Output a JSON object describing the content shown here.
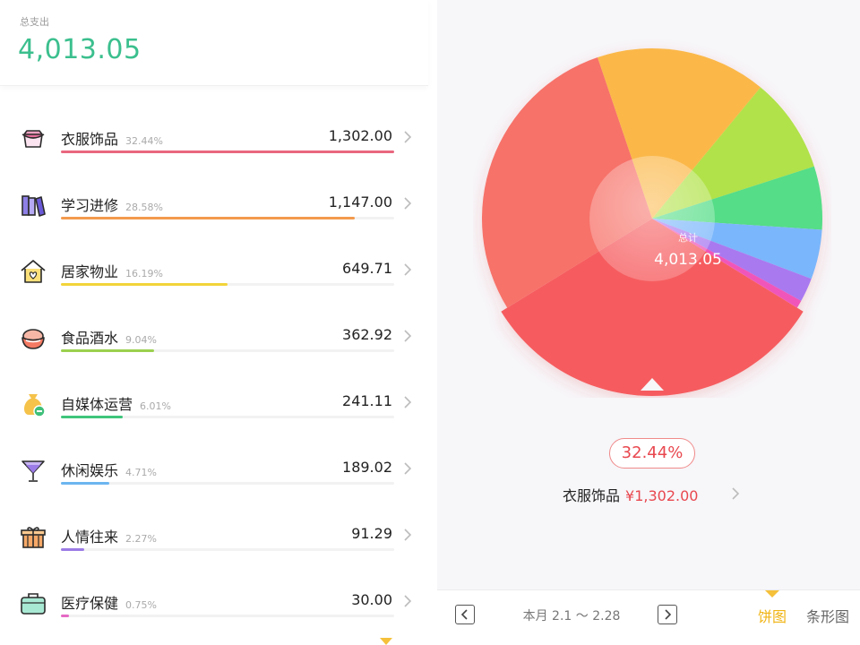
{
  "summary": {
    "label": "总支出",
    "total": "4,013.05"
  },
  "categories": [
    {
      "name": "衣服饰品",
      "percent": "32.44%",
      "amount": "1,302.00",
      "share": 0.3244,
      "icon": "clothes-basket-icon",
      "color": "#e8677e"
    },
    {
      "name": "学习进修",
      "percent": "28.58%",
      "amount": "1,147.00",
      "share": 0.2858,
      "icon": "books-icon",
      "color": "#f39a4d"
    },
    {
      "name": "居家物业",
      "percent": "16.19%",
      "amount": "649.71",
      "share": 0.1619,
      "icon": "house-icon",
      "color": "#f2d43a"
    },
    {
      "name": "食品酒水",
      "percent": "9.04%",
      "amount": "362.92",
      "share": 0.0904,
      "icon": "food-bowl-icon",
      "color": "#9bd04e"
    },
    {
      "name": "自媒体运营",
      "percent": "6.01%",
      "amount": "241.11",
      "share": 0.0601,
      "icon": "money-bag-icon",
      "color": "#3fc57c"
    },
    {
      "name": "休闲娱乐",
      "percent": "4.71%",
      "amount": "189.02",
      "share": 0.0471,
      "icon": "cocktail-glass-icon",
      "color": "#6bb5f0"
    },
    {
      "name": "人情往来",
      "percent": "2.27%",
      "amount": "91.29",
      "share": 0.0227,
      "icon": "gift-box-icon",
      "color": "#9b7be6"
    },
    {
      "name": "医疗保健",
      "percent": "0.75%",
      "amount": "30.00",
      "share": 0.0075,
      "icon": "medical-kit-icon",
      "color": "#e569c4"
    }
  ],
  "chart_data": {
    "type": "pie",
    "center_label": "总计",
    "center_total": "4,013.05",
    "categories": [
      "衣服饰品",
      "学习进修",
      "居家物业",
      "食品酒水",
      "自媒体运营",
      "休闲娱乐",
      "人情往来",
      "医疗保健"
    ],
    "values": [
      1302.0,
      1147.0,
      649.71,
      362.92,
      241.11,
      189.02,
      91.29,
      30.0
    ],
    "colors": [
      "#f65b5f",
      "#f77269",
      "#fbb84a",
      "#b1e24a",
      "#54dd87",
      "#7ab6fb",
      "#a979f0",
      "#f056b9"
    ],
    "selected_index": 0
  },
  "selected": {
    "percent": "32.44%",
    "name": "衣服饰品",
    "amount": "¥1,302.00"
  },
  "footer": {
    "period": "本月 2.1 ～ 2.28",
    "tab_pie": "饼图",
    "tab_bar": "条形图"
  }
}
